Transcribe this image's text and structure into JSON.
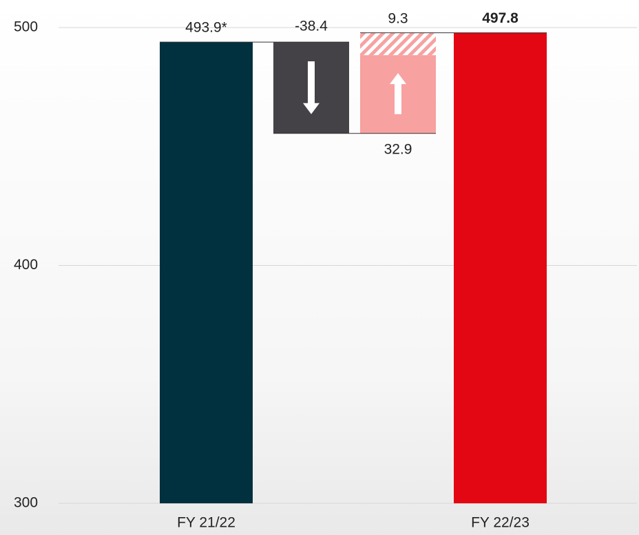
{
  "chart_data": {
    "type": "waterfall",
    "categories": [
      "FY 21/22",
      null,
      null,
      "FY 22/23"
    ],
    "measure": [
      "total",
      "relative",
      "relative",
      "total"
    ],
    "values": [
      493.9,
      -38.4,
      32.9,
      497.8
    ],
    "value_labels": [
      "493.9*",
      "-38.4",
      "32.9",
      "497.8"
    ],
    "hatched_values": [
      null,
      null,
      9.3,
      null
    ],
    "colors": [
      "#01303f",
      "#444246",
      "#f7a1a1",
      "#e30613"
    ],
    "bold_labels": [
      false,
      false,
      false,
      true
    ],
    "ylim": [
      300,
      500
    ],
    "yticks": [
      300,
      400,
      500
    ],
    "grid": true
  }
}
